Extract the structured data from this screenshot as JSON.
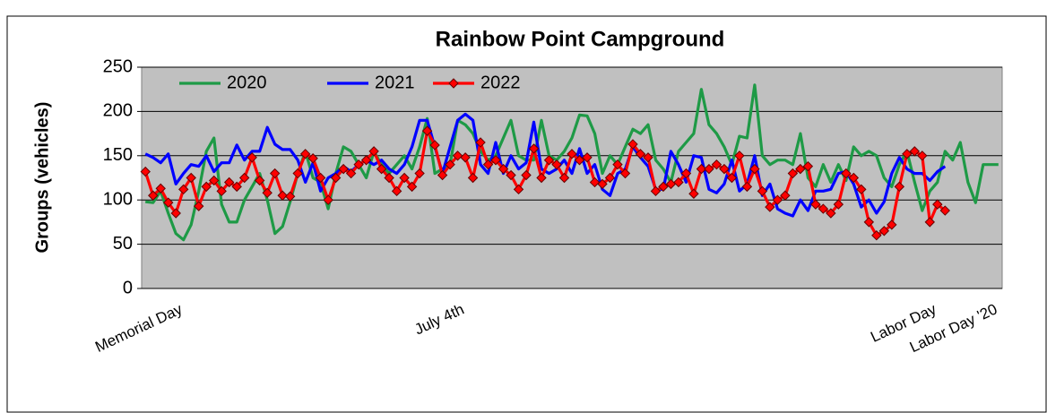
{
  "chart_data": {
    "type": "line",
    "title": "Rainbow Point Campground",
    "y_label": "Groups (vehicles)",
    "categories": [
      null,
      null,
      null,
      "Memorial Day",
      null,
      null,
      null,
      null,
      null,
      null,
      null,
      null,
      null,
      null,
      null,
      null,
      null,
      null,
      null,
      null,
      null,
      null,
      null,
      null,
      null,
      null,
      null,
      null,
      null,
      null,
      null,
      null,
      null,
      null,
      null,
      null,
      null,
      null,
      null,
      null,
      "July 4th",
      null,
      null,
      null,
      null,
      null,
      null,
      null,
      null,
      null,
      null,
      null,
      null,
      null,
      null,
      null,
      null,
      null,
      null,
      null,
      null,
      null,
      null,
      null,
      null,
      null,
      null,
      null,
      null,
      null,
      null,
      null,
      null,
      null,
      null,
      null,
      null,
      null,
      null,
      null,
      null,
      null,
      null,
      null,
      null,
      null,
      null,
      null,
      null,
      null,
      null,
      null,
      null,
      null,
      null,
      null,
      null,
      null,
      null,
      null,
      null,
      null,
      "Labor Day",
      null,
      null,
      null,
      null,
      null,
      null,
      null,
      "Labor Day '20",
      null,
      null
    ],
    "series": [
      {
        "name": "2020",
        "color": "#1e9a46",
        "marker": false,
        "values": [
          98,
          97,
          110,
          85,
          62,
          55,
          72,
          110,
          155,
          170,
          95,
          75,
          75,
          100,
          115,
          130,
          100,
          62,
          70,
          98,
          130,
          155,
          125,
          120,
          90,
          130,
          160,
          155,
          140,
          125,
          155,
          140,
          130,
          140,
          150,
          135,
          160,
          192,
          130,
          135,
          140,
          190,
          185,
          175,
          155,
          145,
          150,
          170,
          190,
          150,
          145,
          145,
          190,
          150,
          145,
          155,
          170,
          196,
          195,
          175,
          130,
          150,
          140,
          160,
          180,
          175,
          185,
          145,
          135,
          120,
          155,
          165,
          175,
          225,
          185,
          175,
          160,
          140,
          172,
          170,
          230,
          150,
          140,
          145,
          145,
          140,
          175,
          125,
          115,
          140,
          120,
          140,
          122,
          160,
          150,
          155,
          150,
          125,
          115,
          140,
          155,
          120,
          88,
          110,
          120,
          155,
          145,
          165,
          120,
          97,
          140,
          140,
          140
        ]
      },
      {
        "name": "2021",
        "color": "#0000ff",
        "marker": false,
        "values": [
          152,
          148,
          142,
          152,
          118,
          130,
          140,
          138,
          150,
          132,
          142,
          142,
          162,
          145,
          155,
          155,
          182,
          163,
          157,
          157,
          145,
          120,
          142,
          110,
          125,
          130,
          138,
          132,
          140,
          145,
          140,
          145,
          135,
          130,
          140,
          160,
          190,
          190,
          160,
          130,
          160,
          190,
          197,
          190,
          140,
          130,
          165,
          130,
          150,
          135,
          142,
          188,
          135,
          130,
          135,
          145,
          130,
          158,
          130,
          140,
          112,
          105,
          130,
          135,
          160,
          148,
          138,
          112,
          112,
          155,
          140,
          120,
          150,
          148,
          112,
          108,
          118,
          145,
          110,
          118,
          150,
          105,
          118,
          90,
          85,
          82,
          100,
          88,
          110,
          110,
          112,
          130,
          132,
          118,
          92,
          100,
          85,
          98,
          130,
          148,
          135,
          130,
          130,
          122,
          132,
          138,
          null,
          null,
          null,
          null,
          null,
          null,
          null
        ]
      },
      {
        "name": "2022",
        "color": "#ff0000",
        "marker": true,
        "values": [
          132,
          105,
          113,
          97,
          85,
          112,
          125,
          93,
          115,
          122,
          110,
          120,
          115,
          125,
          148,
          122,
          108,
          130,
          105,
          104,
          130,
          152,
          147,
          125,
          100,
          125,
          135,
          130,
          140,
          145,
          155,
          135,
          125,
          110,
          125,
          115,
          130,
          178,
          162,
          128,
          140,
          150,
          148,
          125,
          165,
          140,
          145,
          135,
          128,
          112,
          128,
          158,
          125,
          145,
          140,
          125,
          152,
          145,
          148,
          120,
          118,
          125,
          140,
          130,
          163,
          152,
          148,
          110,
          115,
          118,
          120,
          130,
          107,
          135,
          135,
          140,
          135,
          125,
          150,
          115,
          135,
          110,
          92,
          100,
          105,
          130,
          135,
          138,
          95,
          90,
          85,
          95,
          130,
          125,
          112,
          75,
          60,
          65,
          72,
          115,
          152,
          155,
          150,
          75,
          95,
          88,
          null,
          null,
          null,
          null,
          null,
          null,
          null
        ]
      }
    ],
    "ylim": [
      0,
      250
    ],
    "yticks": [
      0,
      50,
      100,
      150,
      200,
      250
    ],
    "grid": true,
    "legend": "top-left"
  }
}
